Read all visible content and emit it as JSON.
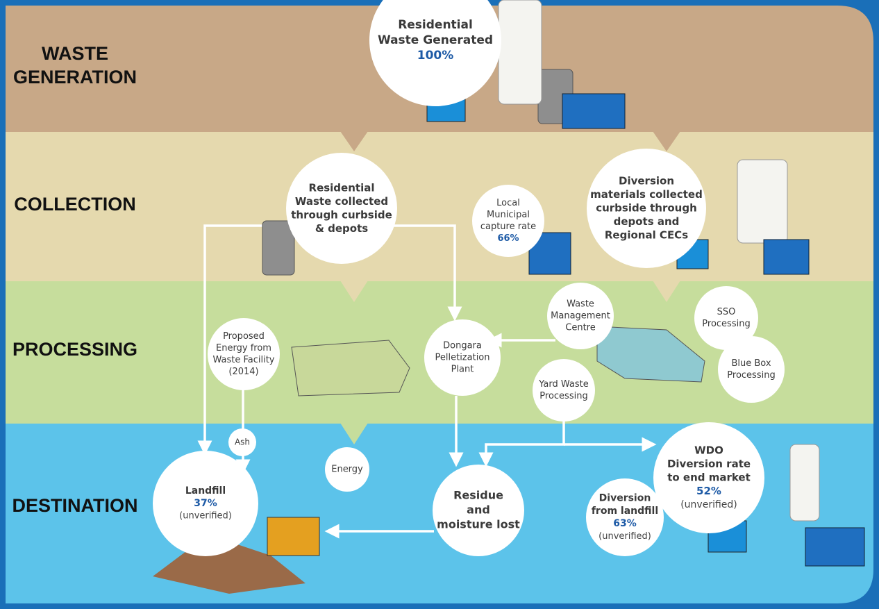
{
  "stages": [
    {
      "lines": [
        "WASTE",
        "GENERATION"
      ]
    },
    {
      "lines": [
        "COLLECTION"
      ]
    },
    {
      "lines": [
        "PROCESSING"
      ]
    },
    {
      "lines": [
        "DESTINATION"
      ]
    }
  ],
  "nodes": [
    {
      "lines": [
        "Residential",
        "Waste Generated"
      ],
      "value": "100%"
    },
    {
      "lines": [
        "Residential",
        "Waste collected",
        "through curbside",
        "& depots"
      ]
    },
    {
      "lines": [
        "Local",
        "Municipal",
        "capture rate"
      ],
      "value": "66%"
    },
    {
      "lines": [
        "Diversion",
        "materials collected",
        "curbside through",
        "depots and",
        "Regional CECs"
      ]
    },
    {
      "lines": [
        "Waste",
        "Management",
        "Centre"
      ]
    },
    {
      "lines": [
        "SSO",
        "Processing"
      ]
    },
    {
      "lines": [
        "Blue Box",
        "Processing"
      ]
    },
    {
      "lines": [
        "Yard Waste",
        "Processing"
      ]
    },
    {
      "lines": [
        "Dongara",
        "Pelletization",
        "Plant"
      ]
    },
    {
      "lines": [
        "Proposed",
        "Energy from",
        "Waste Facility",
        "(2014)"
      ]
    },
    {
      "lines": [
        "Ash"
      ]
    },
    {
      "lines": [
        "Energy"
      ]
    },
    {
      "lines": [
        "Landfill"
      ],
      "value": "37%",
      "note": "(unverified)"
    },
    {
      "lines": [
        "Residue",
        "and",
        "moisture lost"
      ]
    },
    {
      "lines": [
        "WDO",
        "Diversion rate",
        "to end market"
      ],
      "value": "52%",
      "note": "(unverified)"
    },
    {
      "lines": [
        "Diversion",
        "from landfill"
      ],
      "value": "63%",
      "note": "(unverified)"
    }
  ]
}
